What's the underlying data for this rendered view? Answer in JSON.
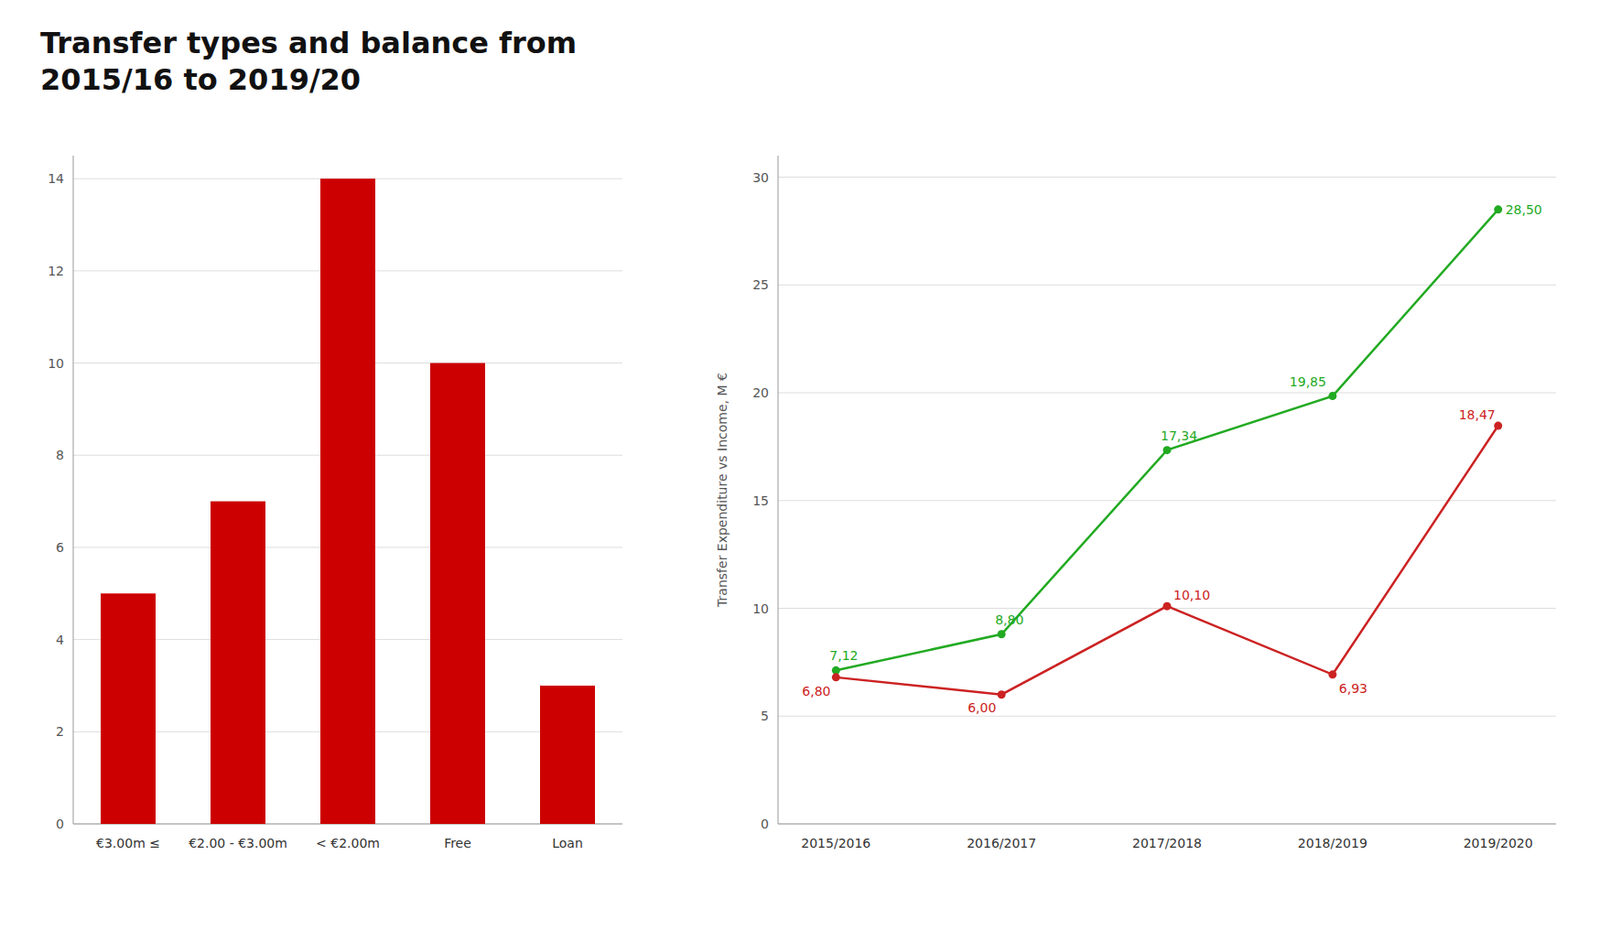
{
  "chart_data": [
    {
      "type": "bar",
      "title": "Transfer types and balance from\n2015/16 to 2019/20",
      "categories": [
        "€3.00m ≤",
        "€2.00 - €3.00m",
        "< €2.00m",
        "Free",
        "Loan"
      ],
      "values": [
        5,
        7,
        14,
        10,
        3
      ],
      "color": "#cc0000",
      "ylim": [
        0,
        14.5
      ],
      "yticks": [
        0,
        2,
        4,
        6,
        8,
        10,
        12,
        14
      ],
      "grid": true
    },
    {
      "type": "line",
      "categories": [
        "2015/2016",
        "2016/2017",
        "2017/2018",
        "2018/2019",
        "2019/2020"
      ],
      "series": [
        {
          "color": "#22aa22",
          "marker": "circle",
          "values": [
            7.12,
            8.8,
            17.34,
            19.85,
            28.5
          ],
          "value_labels": [
            "7,12",
            "8,80",
            "17,34",
            "19,85",
            "28,50"
          ]
        },
        {
          "color": "#cc2222",
          "marker": "circle",
          "values": [
            6.8,
            6.0,
            10.1,
            6.93,
            18.47
          ],
          "value_labels": [
            "6,80",
            "6,00",
            "10,10",
            "6,93",
            "18,47"
          ]
        }
      ],
      "ylabel": "Transfer Expenditure vs Income, M €",
      "ylim": [
        0,
        31
      ],
      "yticks": [
        0,
        5,
        10,
        15,
        20,
        25,
        30
      ],
      "grid": true,
      "data_labels": true
    }
  ]
}
